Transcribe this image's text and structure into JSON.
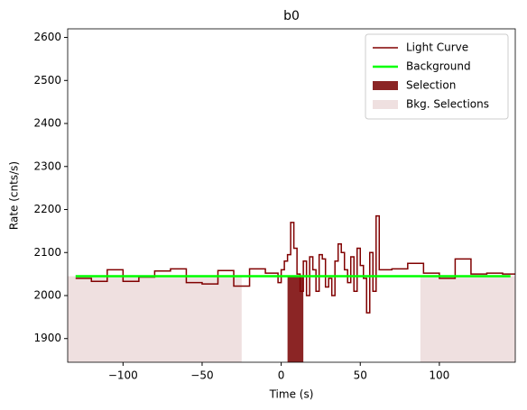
{
  "chart_data": {
    "type": "step",
    "title": "b0",
    "xlabel": "Time (s)",
    "ylabel": "Rate (cnts/s)",
    "xlim": [
      -135,
      148
    ],
    "ylim": [
      1845,
      2620
    ],
    "xticks": [
      {
        "value": -100,
        "label": "−100"
      },
      {
        "value": -50,
        "label": "−50"
      },
      0,
      50,
      100
    ],
    "yticks": [
      1900,
      2000,
      2100,
      2200,
      2300,
      2400,
      2500,
      2600
    ],
    "legend": "upper right",
    "series": [
      {
        "name": "Light Curve",
        "color": "#800000",
        "x": [
          -130,
          -120,
          -110,
          -100,
          -90,
          -80,
          -70,
          -60,
          -50,
          -40,
          -30,
          -20,
          -10,
          -2,
          0,
          2,
          4,
          6,
          8,
          10,
          12,
          14,
          16,
          18,
          20,
          22,
          24,
          26,
          28,
          30,
          32,
          34,
          36,
          38,
          40,
          42,
          44,
          46,
          48,
          50,
          52,
          54,
          56,
          58,
          60,
          62,
          70,
          80,
          90,
          100,
          110,
          120,
          130,
          140,
          148
        ],
        "values": [
          2040,
          2033,
          2060,
          2033,
          2043,
          2057,
          2062,
          2030,
          2027,
          2058,
          2022,
          2062,
          2052,
          2030,
          2060,
          2080,
          2095,
          2170,
          2110,
          2050,
          2010,
          2080,
          2000,
          2090,
          2060,
          2010,
          2095,
          2085,
          2020,
          2040,
          2000,
          2080,
          2120,
          2100,
          2060,
          2030,
          2090,
          2010,
          2110,
          2070,
          2040,
          1960,
          2100,
          2010,
          2185,
          2060,
          2062,
          2075,
          2052,
          2040,
          2085,
          2050,
          2052,
          2050,
          2050
        ]
      },
      {
        "name": "Background",
        "color": "#00ff00",
        "x": [
          -130,
          145
        ],
        "values": [
          2045,
          2045
        ]
      }
    ],
    "regions": [
      {
        "name": "Selection",
        "color": "#8b2525",
        "top": 2045,
        "spans": [
          [
            4,
            14
          ]
        ]
      },
      {
        "name": "Bkg. Selections",
        "color": "#efe0e0",
        "top": 2045,
        "spans": [
          [
            -135,
            -25
          ],
          [
            88,
            148
          ]
        ]
      }
    ]
  }
}
